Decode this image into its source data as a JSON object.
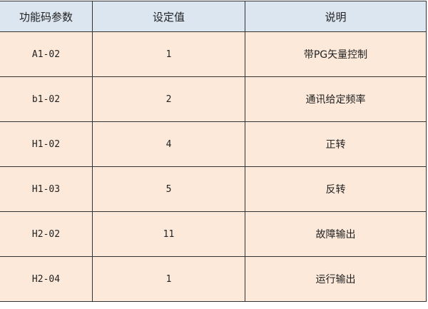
{
  "headers": [
    "功能码参数",
    "设定值",
    "说明"
  ],
  "rows": [
    {
      "code": "A1-02",
      "value": "1",
      "desc": "带PG矢量控制"
    },
    {
      "code": "b1-02",
      "value": "2",
      "desc": "通讯给定频率"
    },
    {
      "code": "H1-02",
      "value": "4",
      "desc": "正转"
    },
    {
      "code": "H1-03",
      "value": "5",
      "desc": "反转"
    },
    {
      "code": "H2-02",
      "value": "11",
      "desc": "故障输出"
    },
    {
      "code": "H2-04",
      "value": "1",
      "desc": "运行输出"
    }
  ],
  "colors": {
    "header_bg": "#dce6f1",
    "row_bg": "#fce9da",
    "border": "#333333"
  }
}
